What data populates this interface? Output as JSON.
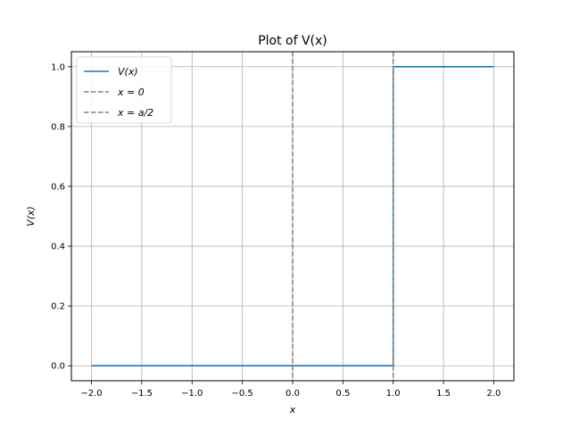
{
  "chart_data": {
    "type": "line",
    "title": "Plot of V(x)",
    "xlabel": "x",
    "ylabel": "V(x)",
    "xlim": [
      -2.2,
      2.2
    ],
    "ylim": [
      -0.05,
      1.05
    ],
    "xticks": [
      -2.0,
      -1.5,
      -1.0,
      -0.5,
      0.0,
      0.5,
      1.0,
      1.5,
      2.0
    ],
    "xtick_labels": [
      "−2.0",
      "−1.5",
      "−1.0",
      "−0.5",
      "0.0",
      "0.5",
      "1.0",
      "1.5",
      "2.0"
    ],
    "yticks": [
      0.0,
      0.2,
      0.4,
      0.6,
      0.8,
      1.0
    ],
    "ytick_labels": [
      "0.0",
      "0.2",
      "0.4",
      "0.6",
      "0.8",
      "1.0"
    ],
    "grid": true,
    "legend_position": "top-left",
    "series": [
      {
        "name": "V(x)",
        "color": "#1f77b4",
        "style": "solid",
        "x": [
          -2.0,
          1.0,
          1.0,
          2.0
        ],
        "y": [
          0.0,
          0.0,
          1.0,
          1.0
        ]
      }
    ],
    "vlines": [
      {
        "name": "x = 0",
        "x": 0.0,
        "color": "#808080",
        "style": "dashed"
      },
      {
        "name": "x = a/2",
        "x": 1.0,
        "color": "#808080",
        "style": "dashed"
      }
    ],
    "grid_color": "#b0b0b0"
  }
}
